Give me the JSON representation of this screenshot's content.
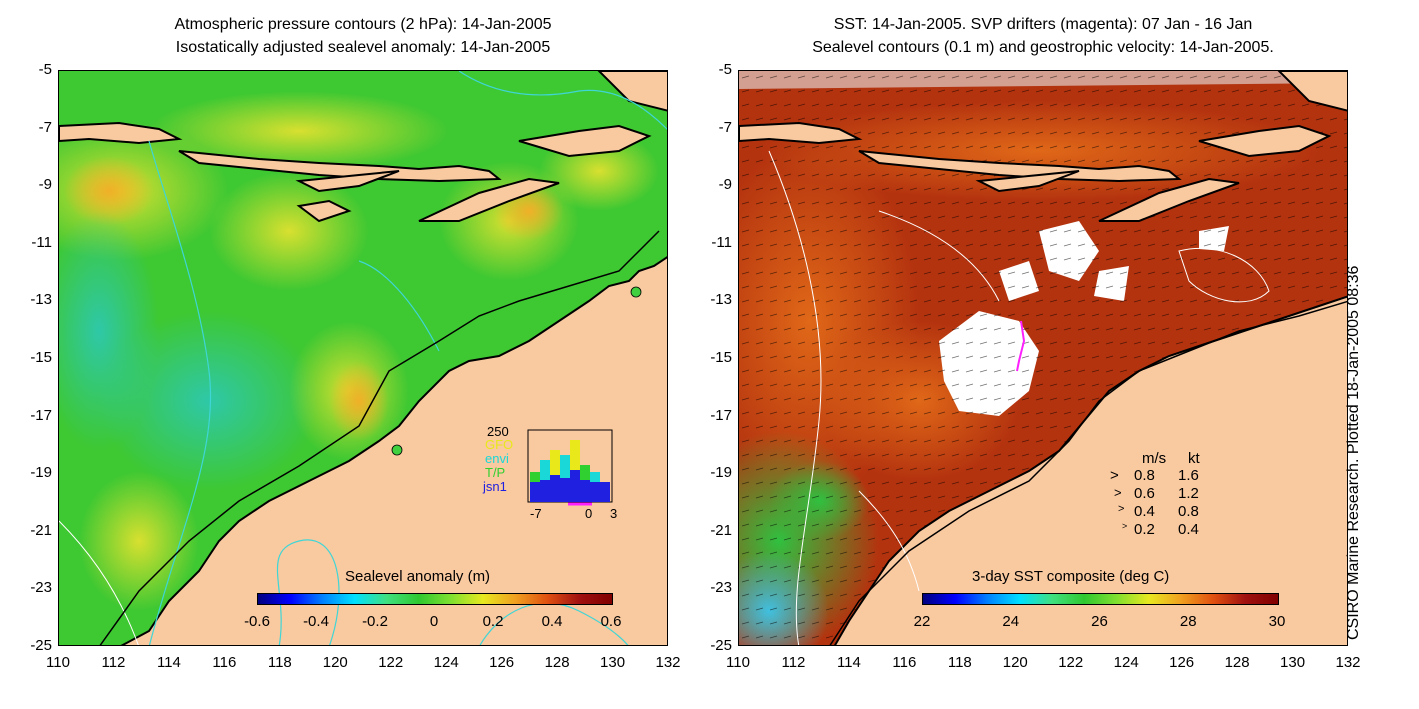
{
  "left_panel": {
    "title_line1": "Atmospheric pressure contours (2 hPa): 14-Jan-2005",
    "title_line2": "Isostatically adjusted sealevel anomaly: 14-Jan-2005",
    "colorbar": {
      "title": "Sealevel anomaly (m)",
      "ticks": [
        "-0.6",
        "-0.4",
        "-0.2",
        "0",
        "0.2",
        "0.4",
        "0.6"
      ],
      "range": [
        -0.6,
        0.6
      ]
    },
    "inset": {
      "y_tick": "250",
      "series": [
        "GFO",
        "envi",
        "T/P",
        "jsn1"
      ],
      "series_colors": [
        "#e8e81a",
        "#1ad8d8",
        "#30d030",
        "#2020e0"
      ],
      "x_ticks": [
        "-7",
        "0",
        "3"
      ]
    }
  },
  "right_panel": {
    "title_line1": "SST: 14-Jan-2005. SVP drifters (magenta): 07 Jan - 16 Jan",
    "title_line2": "Sealevel contours (0.1 m) and geostrophic velocity: 14-Jan-2005.",
    "colorbar": {
      "title": "3-day SST composite (deg C)",
      "ticks": [
        "22",
        "24",
        "26",
        "28",
        "30"
      ],
      "range": [
        22,
        30
      ]
    },
    "velocity_legend": {
      "header_ms": "m/s",
      "header_kt": "kt",
      "rows": [
        {
          "ms": "0.8",
          "kt": "1.6"
        },
        {
          "ms": "0.6",
          "kt": "1.2"
        },
        {
          "ms": "0.4",
          "kt": "0.8"
        },
        {
          "ms": "0.2",
          "kt": "0.4"
        }
      ]
    }
  },
  "axes": {
    "lat_ticks": [
      "-5",
      "-7",
      "-9",
      "-11",
      "-13",
      "-15",
      "-17",
      "-19",
      "-21",
      "-23",
      "-25"
    ],
    "lon_ticks": [
      "110",
      "112",
      "114",
      "116",
      "118",
      "120",
      "122",
      "124",
      "126",
      "128",
      "130",
      "132"
    ]
  },
  "credit": "CSIRO Marine Research. Plotted 18-Jan-2005 08:36",
  "colors": {
    "land": "#f9c9a0",
    "ocean_green": "#3ec832",
    "sst_warm": "#b4330f",
    "contour_cyan": "#3fd6d6"
  }
}
